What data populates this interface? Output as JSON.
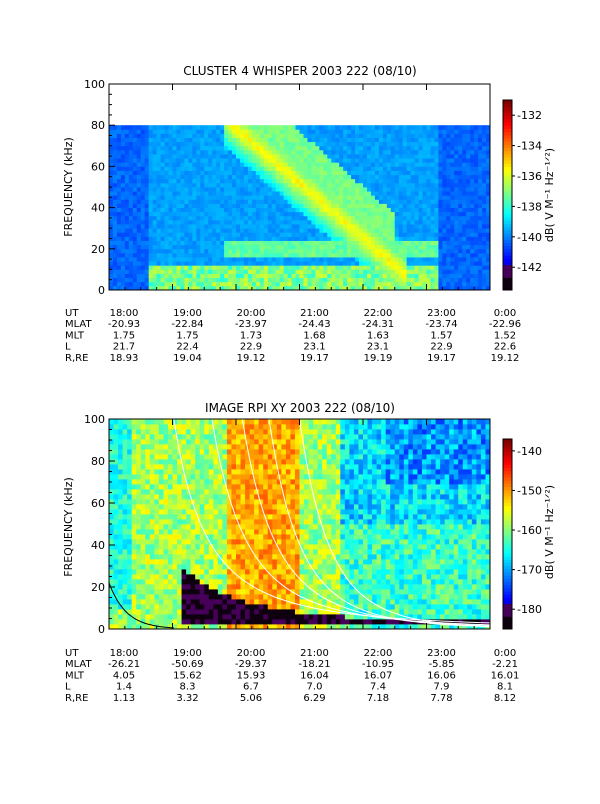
{
  "chart_data": [
    {
      "type": "heatmap",
      "title": "CLUSTER 4 WHISPER 2003 222 (08/10)",
      "ylabel": "FREQUENCY (kHz)",
      "ylim": [
        0,
        100
      ],
      "y_ticks": [
        "0",
        "20",
        "40",
        "60",
        "80",
        "100"
      ],
      "data_top_khz": 80,
      "colorbar": {
        "label_html": "dB( V M⁻¹ Hz⁻¹ᐟ²)",
        "ticks": [
          "-132",
          "-134",
          "-136",
          "-138",
          "-140",
          "-142"
        ],
        "tick_values": [
          -132,
          -134,
          -136,
          -138,
          -140,
          -142
        ],
        "range": [
          -143.5,
          -131
        ]
      },
      "x_ticks": [
        "18:00",
        "19:00",
        "20:00",
        "21:00",
        "22:00",
        "23:00",
        "0:00"
      ],
      "ephemeris": {
        "labels": [
          "UT",
          "MLAT",
          "MLT",
          "L",
          "R,RE"
        ],
        "UT": [
          "18:00",
          "19:00",
          "20:00",
          "21:00",
          "22:00",
          "23:00",
          "0:00"
        ],
        "MLAT": [
          "-20.93",
          "-22.84",
          "-23.97",
          "-24.43",
          "-24.31",
          "-23.74",
          "-22.96"
        ],
        "MLT": [
          "1.75",
          "1.75",
          "1.73",
          "1.68",
          "1.63",
          "1.57",
          "1.52"
        ],
        "L": [
          "21.7",
          "22.4",
          "22.9",
          "23.1",
          "23.1",
          "22.9",
          "22.6"
        ],
        "R,RE": [
          "18.93",
          "19.04",
          "19.12",
          "19.17",
          "19.19",
          "19.17",
          "19.12"
        ]
      }
    },
    {
      "type": "heatmap",
      "title": "IMAGE RPI XY 2003 222 (08/10)",
      "ylabel": "FREQUENCY (kHz)",
      "ylim": [
        0,
        100
      ],
      "y_ticks": [
        "0",
        "20",
        "40",
        "60",
        "80",
        "100"
      ],
      "colorbar": {
        "label_html": "dB( V M⁻¹ Hz⁻¹ᐟ²)",
        "ticks": [
          "-140",
          "-150",
          "-160",
          "-170",
          "-180"
        ],
        "tick_values": [
          -140,
          -150,
          -160,
          -170,
          -180
        ],
        "range": [
          -185,
          -137
        ]
      },
      "x_ticks": [
        "18:00",
        "19:00",
        "20:00",
        "21:00",
        "22:00",
        "23:00",
        "0:00"
      ],
      "ephemeris": {
        "labels": [
          "UT",
          "MLAT",
          "MLT",
          "L",
          "R,RE"
        ],
        "UT": [
          "18:00",
          "19:00",
          "20:00",
          "21:00",
          "22:00",
          "23:00",
          "0:00"
        ],
        "MLAT": [
          "-26.21",
          "-50.69",
          "-29.37",
          "-18.21",
          "-10.95",
          "-5.85",
          "-2.21"
        ],
        "MLT": [
          "4.05",
          "15.62",
          "15.93",
          "16.04",
          "16.07",
          "16.06",
          "16.01"
        ],
        "L": [
          "1.4",
          "8.3",
          "6.7",
          "7.0",
          "7.4",
          "7.9",
          "8.1"
        ],
        "R,RE": [
          "1.13",
          "3.32",
          "5.06",
          "6.29",
          "7.18",
          "7.78",
          "8.12"
        ]
      }
    }
  ]
}
